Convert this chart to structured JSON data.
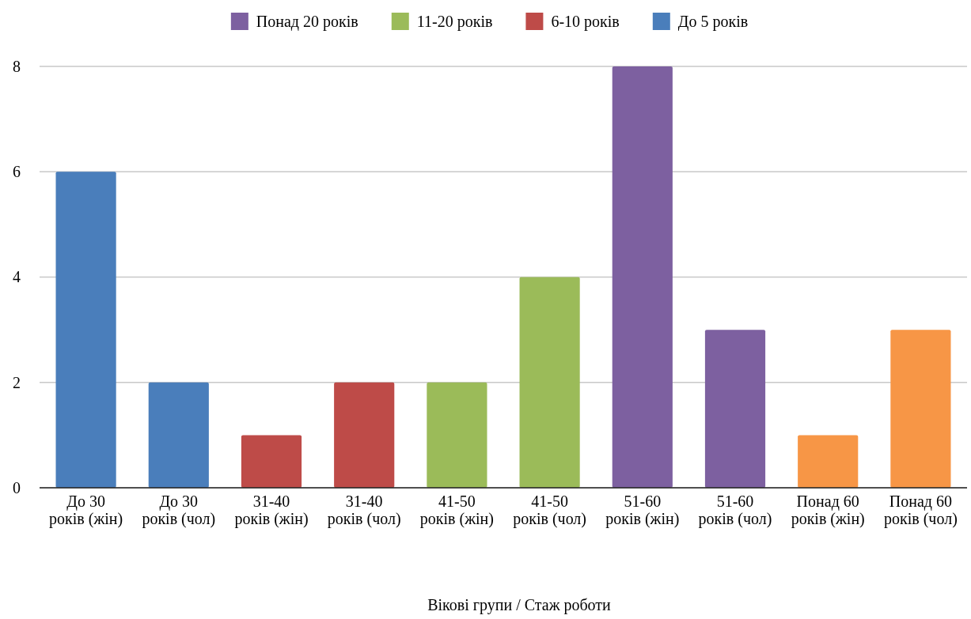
{
  "chart_data": {
    "type": "bar",
    "xlabel": "Вікові групи / Стаж роботи",
    "categories": [
      "До 30 років (жін)",
      "До 30 років (чол)",
      "31-40 років (жін)",
      "31-40 років (чол)",
      "41-50 років (жін)",
      "41-50 років (чол)",
      "51-60 років (жін)",
      "51-60 років (чол)",
      "Понад 60 років (жін)",
      "Понад 60 років (чол)"
    ],
    "series": [
      {
        "name": "Понад 20 років",
        "color": "#7d60a0",
        "values": [
          null,
          null,
          null,
          null,
          null,
          null,
          8,
          3,
          null,
          null
        ]
      },
      {
        "name": "11-20 років",
        "color": "#9bbb59",
        "values": [
          null,
          null,
          null,
          null,
          2,
          4,
          null,
          null,
          null,
          null
        ]
      },
      {
        "name": "6-10 років",
        "color": "#be4b48",
        "values": [
          null,
          null,
          1,
          2,
          null,
          null,
          null,
          null,
          null,
          null
        ]
      },
      {
        "name": "До 5 років",
        "color": "#4a7ebb",
        "values": [
          6,
          2,
          null,
          null,
          null,
          null,
          null,
          null,
          null,
          null
        ]
      },
      {
        "color": "#f79646",
        "values": [
          null,
          null,
          null,
          null,
          null,
          null,
          null,
          null,
          1,
          3
        ]
      }
    ],
    "ylim": [
      0,
      8
    ],
    "yticks": [
      0,
      2,
      4,
      6,
      8
    ],
    "grid": "y",
    "legend": "top"
  }
}
